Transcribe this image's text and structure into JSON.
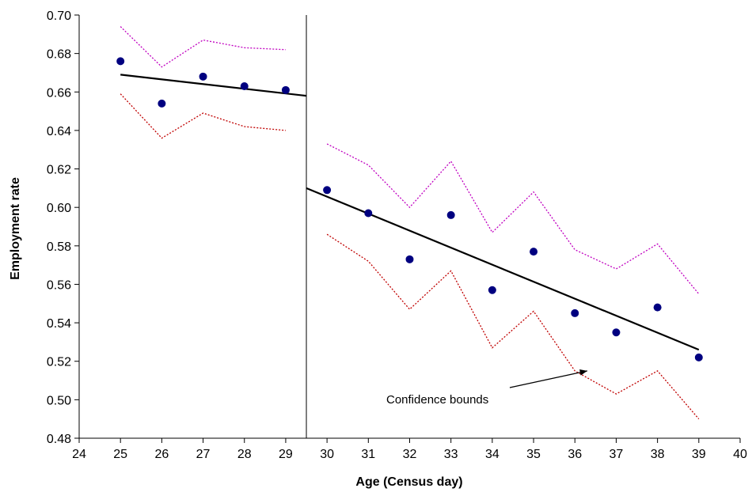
{
  "chart_data": {
    "type": "scatter",
    "xlabel": "Age (Census day)",
    "ylabel": "Employment rate",
    "xlim": [
      24,
      40
    ],
    "ylim": [
      0.48,
      0.7
    ],
    "xticks": [
      "24",
      "25",
      "26",
      "27",
      "28",
      "29",
      "30",
      "31",
      "32",
      "33",
      "34",
      "35",
      "36",
      "37",
      "38",
      "39",
      "40"
    ],
    "yticks": [
      "0.48",
      "0.50",
      "0.52",
      "0.54",
      "0.56",
      "0.58",
      "0.60",
      "0.62",
      "0.64",
      "0.66",
      "0.68",
      "0.70"
    ],
    "grid": false,
    "cutoff_x": 29.5,
    "series": [
      {
        "kind": "points",
        "color": "#000080",
        "x": [
          25,
          26,
          27,
          28,
          29,
          30,
          31,
          32,
          33,
          34,
          35,
          36,
          37,
          38,
          39
        ],
        "y": [
          0.676,
          0.654,
          0.668,
          0.663,
          0.661,
          0.609,
          0.597,
          0.573,
          0.596,
          0.557,
          0.577,
          0.545,
          0.535,
          0.548,
          0.522
        ]
      },
      {
        "kind": "fit",
        "color": "#000000",
        "segments": [
          {
            "x": [
              25,
              29.5
            ],
            "y": [
              0.669,
              0.658
            ]
          },
          {
            "x": [
              29.5,
              39
            ],
            "y": [
              0.61,
              0.526
            ]
          }
        ]
      },
      {
        "kind": "upper_bound",
        "color": "#c000c0",
        "segments": [
          {
            "x": [
              25,
              26,
              27,
              28,
              29
            ],
            "y": [
              0.694,
              0.673,
              0.687,
              0.683,
              0.682
            ]
          },
          {
            "x": [
              30,
              31,
              32,
              33,
              34,
              35,
              36,
              37,
              38,
              39
            ],
            "y": [
              0.633,
              0.622,
              0.6,
              0.624,
              0.587,
              0.608,
              0.578,
              0.568,
              0.581,
              0.555
            ]
          }
        ]
      },
      {
        "kind": "lower_bound",
        "color": "#c00000",
        "segments": [
          {
            "x": [
              25,
              26,
              27,
              28,
              29
            ],
            "y": [
              0.659,
              0.636,
              0.649,
              0.642,
              0.64
            ]
          },
          {
            "x": [
              30,
              31,
              32,
              33,
              34,
              35,
              36,
              37,
              38,
              39
            ],
            "y": [
              0.586,
              0.572,
              0.547,
              0.567,
              0.527,
              0.546,
              0.515,
              0.503,
              0.515,
              0.49
            ]
          }
        ]
      }
    ],
    "annotations": [
      {
        "text": "Confidence bounds",
        "arrow_to": {
          "x": 36.3,
          "y": 0.515
        }
      }
    ]
  }
}
